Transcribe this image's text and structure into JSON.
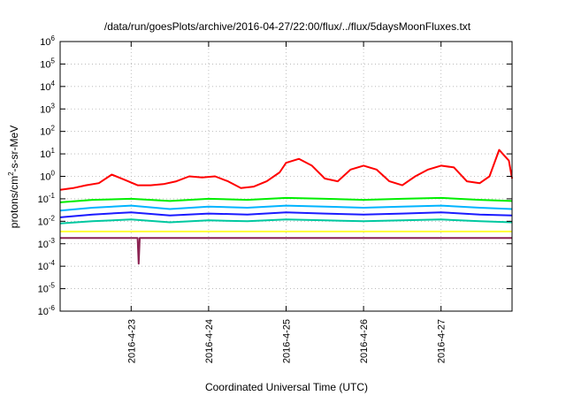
{
  "chart_data": {
    "type": "line",
    "title": "/data/run/goesPlots/archive/2016-04-27/22:00/flux/../flux/5daysMoonFluxes.txt",
    "xlabel": "Coordinated Universal Time (UTC)",
    "ylabel_parts": {
      "pre": "protons/cm",
      "sup": "2",
      "post": "-s-sr-MeV"
    },
    "yscale": "log",
    "ylim": [
      1e-06,
      1000000.0
    ],
    "xlim": [
      "2016-04-22T02:00",
      "2016-04-27T22:00"
    ],
    "grid": true,
    "y_ticks": [
      {
        "base": "10",
        "exp": "-6"
      },
      {
        "base": "10",
        "exp": "-5"
      },
      {
        "base": "10",
        "exp": "-4"
      },
      {
        "base": "10",
        "exp": "-3"
      },
      {
        "base": "10",
        "exp": "-2"
      },
      {
        "base": "10",
        "exp": "-1"
      },
      {
        "base": "10",
        "exp": "0"
      },
      {
        "base": "10",
        "exp": "1"
      },
      {
        "base": "10",
        "exp": "2"
      },
      {
        "base": "10",
        "exp": "3"
      },
      {
        "base": "10",
        "exp": "4"
      },
      {
        "base": "10",
        "exp": "5"
      },
      {
        "base": "10",
        "exp": "6"
      }
    ],
    "x_ticks": [
      "2016-4-23",
      "2016-4-24",
      "2016-4-25",
      "2016-4-26",
      "2016-4-27"
    ],
    "series": [
      {
        "color": "#ff0000",
        "x": [
          "2016-04-22T02:00",
          "2016-04-22T06:00",
          "2016-04-22T10:00",
          "2016-04-22T14:00",
          "2016-04-22T18:00",
          "2016-04-22T22:00",
          "2016-04-23T02:00",
          "2016-04-23T06:00",
          "2016-04-23T10:00",
          "2016-04-23T14:00",
          "2016-04-23T18:00",
          "2016-04-23T22:00",
          "2016-04-24T02:00",
          "2016-04-24T06:00",
          "2016-04-24T10:00",
          "2016-04-24T14:00",
          "2016-04-24T18:00",
          "2016-04-24T22:00",
          "2016-04-25T00:00",
          "2016-04-25T04:00",
          "2016-04-25T08:00",
          "2016-04-25T12:00",
          "2016-04-25T16:00",
          "2016-04-25T20:00",
          "2016-04-26T00:00",
          "2016-04-26T04:00",
          "2016-04-26T08:00",
          "2016-04-26T12:00",
          "2016-04-26T16:00",
          "2016-04-26T20:00",
          "2016-04-27T00:00",
          "2016-04-27T04:00",
          "2016-04-27T08:00",
          "2016-04-27T12:00",
          "2016-04-27T15:00",
          "2016-04-27T18:00",
          "2016-04-27T21:00",
          "2016-04-27T22:00"
        ],
        "y": [
          0.25,
          0.3,
          0.4,
          0.5,
          1.2,
          0.7,
          0.4,
          0.4,
          0.45,
          0.6,
          1.0,
          0.9,
          1.0,
          0.6,
          0.3,
          0.35,
          0.6,
          1.5,
          4.0,
          6.0,
          3.0,
          0.8,
          0.6,
          2.0,
          3.0,
          2.0,
          0.6,
          0.4,
          1.0,
          2.0,
          3.0,
          2.5,
          0.6,
          0.5,
          1.0,
          15,
          5.0,
          0.8
        ]
      },
      {
        "color": "#00ee00",
        "x": [
          "2016-04-22T02:00",
          "2016-04-22T12:00",
          "2016-04-23T00:00",
          "2016-04-23T12:00",
          "2016-04-24T00:00",
          "2016-04-24T12:00",
          "2016-04-25T00:00",
          "2016-04-25T12:00",
          "2016-04-26T00:00",
          "2016-04-26T12:00",
          "2016-04-27T00:00",
          "2016-04-27T12:00",
          "2016-04-27T22:00"
        ],
        "y": [
          0.07,
          0.09,
          0.1,
          0.08,
          0.1,
          0.09,
          0.11,
          0.1,
          0.09,
          0.1,
          0.11,
          0.09,
          0.08
        ]
      },
      {
        "color": "#00b4ff",
        "x": [
          "2016-04-22T02:00",
          "2016-04-22T12:00",
          "2016-04-23T00:00",
          "2016-04-23T12:00",
          "2016-04-24T00:00",
          "2016-04-24T12:00",
          "2016-04-25T00:00",
          "2016-04-25T12:00",
          "2016-04-26T00:00",
          "2016-04-26T12:00",
          "2016-04-27T00:00",
          "2016-04-27T12:00",
          "2016-04-27T22:00"
        ],
        "y": [
          0.03,
          0.04,
          0.05,
          0.035,
          0.045,
          0.04,
          0.05,
          0.045,
          0.04,
          0.045,
          0.05,
          0.04,
          0.035
        ]
      },
      {
        "color": "#1a1aff",
        "x": [
          "2016-04-22T02:00",
          "2016-04-22T12:00",
          "2016-04-23T00:00",
          "2016-04-23T12:00",
          "2016-04-24T00:00",
          "2016-04-24T12:00",
          "2016-04-25T00:00",
          "2016-04-25T12:00",
          "2016-04-26T00:00",
          "2016-04-26T12:00",
          "2016-04-27T00:00",
          "2016-04-27T12:00",
          "2016-04-27T22:00"
        ],
        "y": [
          0.015,
          0.02,
          0.025,
          0.018,
          0.022,
          0.02,
          0.025,
          0.022,
          0.02,
          0.022,
          0.025,
          0.02,
          0.018
        ]
      },
      {
        "color": "#00c8a0",
        "x": [
          "2016-04-22T02:00",
          "2016-04-22T12:00",
          "2016-04-23T00:00",
          "2016-04-23T12:00",
          "2016-04-24T00:00",
          "2016-04-24T12:00",
          "2016-04-25T00:00",
          "2016-04-25T12:00",
          "2016-04-26T00:00",
          "2016-04-26T12:00",
          "2016-04-27T00:00",
          "2016-04-27T12:00",
          "2016-04-27T22:00"
        ],
        "y": [
          0.008,
          0.01,
          0.012,
          0.009,
          0.011,
          0.01,
          0.012,
          0.011,
          0.01,
          0.011,
          0.012,
          0.01,
          0.009
        ]
      },
      {
        "color": "#ffff33",
        "x": [
          "2016-04-22T02:00",
          "2016-04-23T00:00",
          "2016-04-24T00:00",
          "2016-04-25T00:00",
          "2016-04-26T00:00",
          "2016-04-27T00:00",
          "2016-04-27T22:00"
        ],
        "y": [
          0.0035,
          0.0035,
          0.0035,
          0.0035,
          0.0035,
          0.0035,
          0.0035
        ]
      },
      {
        "color": "#8b2252",
        "x": [
          "2016-04-22T02:00",
          "2016-04-23T00:00",
          "2016-04-23T02:00",
          "2016-04-23T02:20",
          "2016-04-23T02:40",
          "2016-04-23T05:00",
          "2016-04-24T00:00",
          "2016-04-25T00:00",
          "2016-04-26T00:00",
          "2016-04-27T00:00",
          "2016-04-27T22:00"
        ],
        "y": [
          0.0018,
          0.0018,
          0.0018,
          0.00013,
          0.0018,
          0.0018,
          0.0018,
          0.0018,
          0.0018,
          0.0018,
          0.0018
        ]
      }
    ]
  }
}
